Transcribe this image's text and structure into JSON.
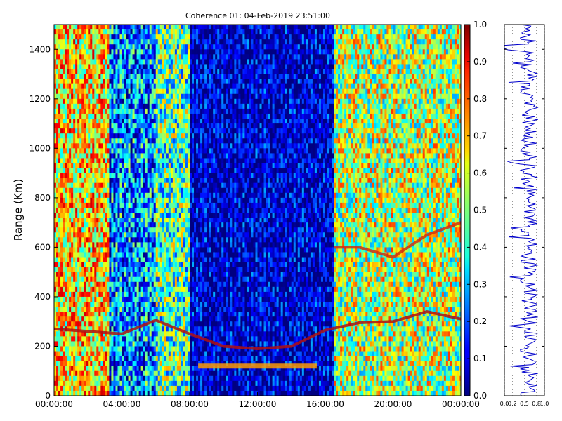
{
  "chart_data": [
    {
      "type": "heatmap",
      "title": "Coherence 01: 04-Feb-2019 23:51:00",
      "ylabel": "Range (Km)",
      "xlabel": "",
      "x_ticks": [
        "00:00:00",
        "04:00:00",
        "08:00:00",
        "12:00:00",
        "16:00:00",
        "20:00:00",
        "00:00:00"
      ],
      "x_range_hours": [
        0,
        24
      ],
      "y_ticks": [
        "0",
        "200",
        "400",
        "600",
        "800",
        "1000",
        "1200",
        "1400"
      ],
      "ylim": [
        0,
        1500
      ],
      "colormap": "jet",
      "colorbar": {
        "ticks": [
          "0.0",
          "0.1",
          "0.2",
          "0.3",
          "0.4",
          "0.5",
          "0.6",
          "0.7",
          "0.8",
          "0.9",
          "1.0"
        ],
        "range": [
          0,
          1
        ]
      },
      "regions": [
        {
          "hours": [
            0,
            3.2
          ],
          "mean_coherence": 0.65
        },
        {
          "hours": [
            3.2,
            6
          ],
          "mean_coherence": 0.3
        },
        {
          "hours": [
            6,
            8
          ],
          "mean_coherence": 0.45
        },
        {
          "hours": [
            8,
            16.5
          ],
          "mean_coherence": 0.12
        },
        {
          "hours": [
            16.5,
            24
          ],
          "mean_coherence": 0.55
        }
      ],
      "echo_traces": [
        {
          "name": "ground-scatter",
          "points": [
            [
              0,
              270
            ],
            [
              2,
              260
            ],
            [
              4,
              250
            ],
            [
              6,
              305
            ],
            [
              8,
              250
            ],
            [
              10,
              200
            ],
            [
              12,
              190
            ],
            [
              14,
              200
            ],
            [
              16,
              265
            ],
            [
              18,
              295
            ],
            [
              20,
              300
            ],
            [
              22,
              340
            ],
            [
              24,
              310
            ]
          ]
        },
        {
          "name": "lower",
          "points": [
            [
              8.5,
              120
            ],
            [
              15.5,
              120
            ]
          ]
        },
        {
          "name": "upper",
          "points": [
            [
              16.5,
              600
            ],
            [
              18,
              600
            ],
            [
              20,
              560
            ],
            [
              22,
              650
            ],
            [
              24,
              700
            ]
          ]
        }
      ]
    },
    {
      "type": "line",
      "x_ticks": [
        "0.0",
        "0.2",
        "0.5",
        "0.8",
        "1.0"
      ],
      "xlim": [
        0,
        1
      ],
      "ylim": [
        0,
        1500
      ],
      "colors": {
        "line": "#0000cc"
      }
    }
  ]
}
